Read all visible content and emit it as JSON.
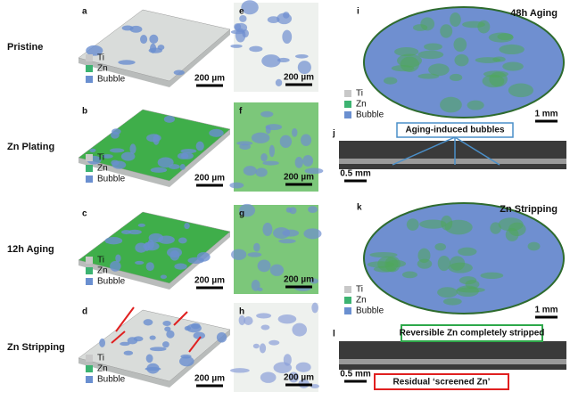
{
  "row_labels": [
    "Pristine",
    "Zn Plating",
    "12h Aging",
    "Zn Stripping"
  ],
  "legend": [
    "Ti",
    "Zn",
    "Bubble"
  ],
  "panels": [
    {
      "letter": "a",
      "scale_bar": "200 µm"
    },
    {
      "letter": "b",
      "scale_bar": "200 µm"
    },
    {
      "letter": "c",
      "scale_bar": "200 µm"
    },
    {
      "letter": "d",
      "scale_bar": "200 µm"
    },
    {
      "letter": "e",
      "scale_bar": "200 µm"
    },
    {
      "letter": "f",
      "scale_bar": "200 µm"
    },
    {
      "letter": "g",
      "scale_bar": "200 µm"
    },
    {
      "letter": "h",
      "scale_bar": "200 µm"
    },
    {
      "letter": "i",
      "title": "48h Aging",
      "scale_bar": "1 mm"
    },
    {
      "letter": "j",
      "annotation": "Aging-induced bubbles",
      "scale_bar": "0.5 mm"
    },
    {
      "letter": "k",
      "title": "Zn Stripping",
      "scale_bar": "1 mm"
    },
    {
      "letter": "l",
      "annotations": [
        "Reversible Zn completely stripped",
        "Residual ‘screened Zn’"
      ],
      "scale_bar": "0.5 mm"
    }
  ]
}
